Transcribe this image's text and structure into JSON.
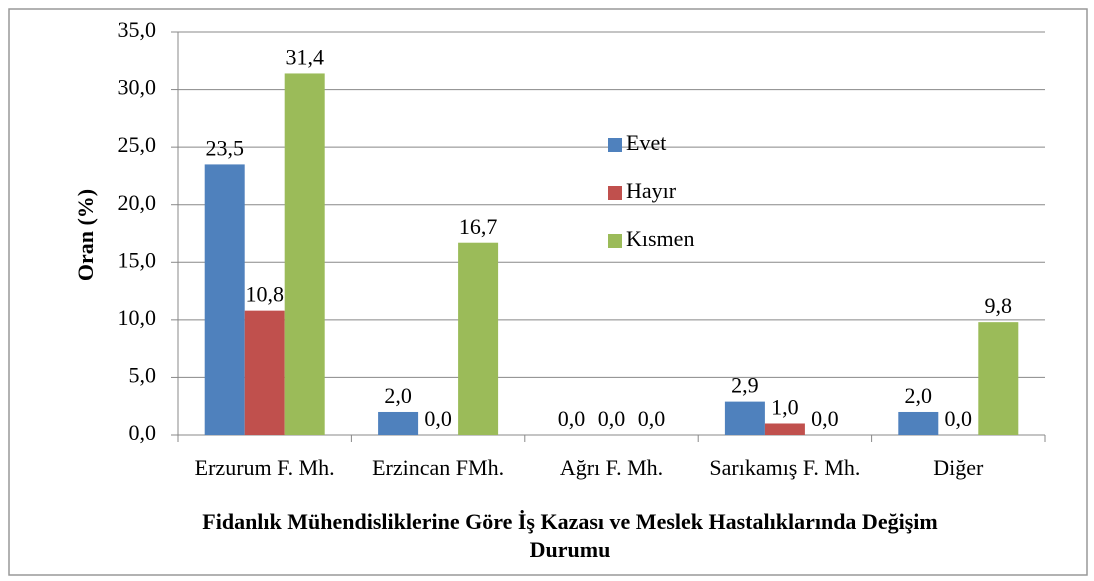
{
  "chart_data": {
    "type": "bar",
    "categories": [
      "Erzurum F. Mh.",
      "Erzincan FMh.",
      "Ağrı F. Mh.",
      "Sarıkamış F. Mh.",
      "Diğer"
    ],
    "series": [
      {
        "name": "Evet",
        "color": "#4f81bd",
        "values": [
          23.5,
          2.0,
          0.0,
          2.9,
          2.0
        ],
        "value_labels": [
          "23,5",
          "2,0",
          "0,0",
          "2,9",
          "2,0"
        ]
      },
      {
        "name": "Hayır",
        "color": "#c0504d",
        "values": [
          10.8,
          0.0,
          0.0,
          1.0,
          0.0
        ],
        "value_labels": [
          "10,8",
          "0,0",
          "0,0",
          "1,0",
          "0,0"
        ]
      },
      {
        "name": "Kısmen",
        "color": "#9bbb59",
        "values": [
          31.4,
          16.7,
          0.0,
          0.0,
          9.8
        ],
        "value_labels": [
          "31,4",
          "16,7",
          "0,0",
          "0,0",
          "9,8"
        ]
      }
    ],
    "x_label": "Fidanlık Mühendisliklerine Göre İş Kazası ve Meslek Hastalıklarında Değişim Durumu",
    "y_label": "Oran (%)",
    "ylim": [
      0,
      35
    ],
    "yticks": [
      {
        "value": 0,
        "label": "0,0"
      },
      {
        "value": 5,
        "label": "5,0"
      },
      {
        "value": 10,
        "label": "10,0"
      },
      {
        "value": 15,
        "label": "15,0"
      },
      {
        "value": 20,
        "label": "20,0"
      },
      {
        "value": 25,
        "label": "25,0"
      },
      {
        "value": 30,
        "label": "30,0"
      },
      {
        "value": 35,
        "label": "35,0"
      }
    ],
    "grid": true,
    "legend": "center"
  }
}
